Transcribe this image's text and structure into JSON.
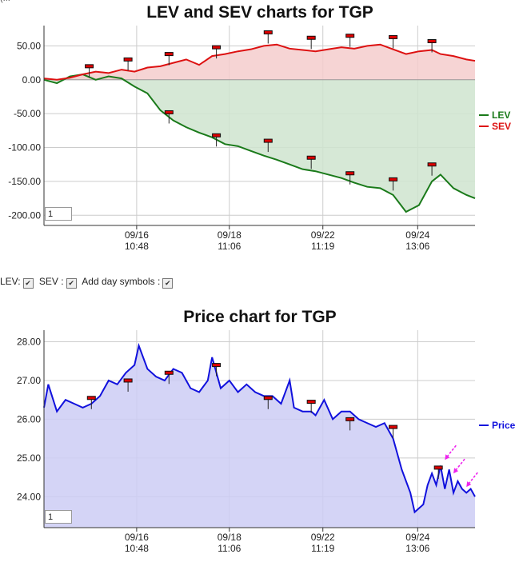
{
  "page": {
    "top_fragment": "(..."
  },
  "chart_data": [
    {
      "type": "area",
      "title": "LEV and SEV charts for TGP",
      "yticks": [
        50,
        0,
        -50,
        -100,
        -150,
        -200
      ],
      "ylim": [
        -215,
        80
      ],
      "xticks": [
        {
          "x": 0.215,
          "date": "09/16",
          "time": "10:48"
        },
        {
          "x": 0.43,
          "date": "09/18",
          "time": "11:06"
        },
        {
          "x": 0.647,
          "date": "09/22",
          "time": "11:19"
        },
        {
          "x": 0.867,
          "date": "09/24",
          "time": "13:06"
        }
      ],
      "frame_value": "1",
      "series": [
        {
          "name": "LEV",
          "color": "#1a7a1a",
          "fill": "#cfe4cf",
          "x": [
            0,
            0.03,
            0.06,
            0.09,
            0.12,
            0.15,
            0.18,
            0.21,
            0.24,
            0.27,
            0.3,
            0.33,
            0.36,
            0.39,
            0.42,
            0.45,
            0.48,
            0.51,
            0.54,
            0.57,
            0.6,
            0.63,
            0.66,
            0.69,
            0.72,
            0.75,
            0.78,
            0.81,
            0.84,
            0.87,
            0.9,
            0.92,
            0.95,
            0.98,
            1.0
          ],
          "y": [
            0,
            -5,
            5,
            8,
            0,
            5,
            2,
            -10,
            -20,
            -45,
            -60,
            -70,
            -78,
            -85,
            -95,
            -98,
            -105,
            -112,
            -118,
            -125,
            -132,
            -135,
            -140,
            -145,
            -152,
            -158,
            -160,
            -170,
            -195,
            -185,
            -150,
            -140,
            -160,
            -170,
            -175
          ]
        },
        {
          "name": "SEV",
          "color": "#dd1111",
          "fill": "#f4cccc",
          "x": [
            0,
            0.03,
            0.06,
            0.09,
            0.12,
            0.15,
            0.18,
            0.21,
            0.24,
            0.27,
            0.3,
            0.33,
            0.36,
            0.39,
            0.42,
            0.45,
            0.48,
            0.51,
            0.54,
            0.57,
            0.6,
            0.63,
            0.66,
            0.69,
            0.72,
            0.75,
            0.78,
            0.81,
            0.84,
            0.87,
            0.9,
            0.92,
            0.95,
            0.98,
            1.0
          ],
          "y": [
            2,
            0,
            3,
            8,
            12,
            10,
            15,
            12,
            18,
            20,
            25,
            30,
            22,
            35,
            38,
            42,
            45,
            50,
            52,
            46,
            44,
            42,
            45,
            48,
            46,
            50,
            52,
            45,
            38,
            42,
            44,
            38,
            35,
            30,
            28
          ]
        }
      ],
      "markers": [
        {
          "x": 0.105,
          "y": 20
        },
        {
          "x": 0.195,
          "y": 30
        },
        {
          "x": 0.29,
          "y": 38
        },
        {
          "x": 0.4,
          "y": 48
        },
        {
          "x": 0.52,
          "y": 70
        },
        {
          "x": 0.62,
          "y": 62
        },
        {
          "x": 0.71,
          "y": 65
        },
        {
          "x": 0.81,
          "y": 63
        },
        {
          "x": 0.9,
          "y": 57
        },
        {
          "x": 0.29,
          "y": -48
        },
        {
          "x": 0.4,
          "y": -82
        },
        {
          "x": 0.52,
          "y": -90
        },
        {
          "x": 0.62,
          "y": -115
        },
        {
          "x": 0.71,
          "y": -138
        },
        {
          "x": 0.81,
          "y": -147
        },
        {
          "x": 0.9,
          "y": -125
        }
      ]
    },
    {
      "type": "area",
      "title": "Price chart for TGP",
      "yticks": [
        28.0,
        27.0,
        26.0,
        25.0,
        24.0
      ],
      "ylim": [
        23.2,
        28.3
      ],
      "xticks": [
        {
          "x": 0.215,
          "date": "09/16",
          "time": "10:48"
        },
        {
          "x": 0.43,
          "date": "09/18",
          "time": "11:06"
        },
        {
          "x": 0.647,
          "date": "09/22",
          "time": "11:19"
        },
        {
          "x": 0.867,
          "date": "09/24",
          "time": "13:06"
        }
      ],
      "frame_value": "1",
      "series": [
        {
          "name": "Price",
          "color": "#1111dd",
          "fill": "#ccccf4",
          "x": [
            0,
            0.01,
            0.03,
            0.05,
            0.07,
            0.09,
            0.11,
            0.13,
            0.15,
            0.17,
            0.19,
            0.21,
            0.22,
            0.24,
            0.26,
            0.28,
            0.3,
            0.32,
            0.34,
            0.36,
            0.38,
            0.39,
            0.41,
            0.43,
            0.45,
            0.47,
            0.49,
            0.51,
            0.53,
            0.55,
            0.57,
            0.58,
            0.6,
            0.62,
            0.63,
            0.65,
            0.67,
            0.69,
            0.71,
            0.73,
            0.75,
            0.77,
            0.79,
            0.81,
            0.83,
            0.85,
            0.86,
            0.88,
            0.89,
            0.9,
            0.91,
            0.92,
            0.93,
            0.94,
            0.95,
            0.96,
            0.97,
            0.98,
            0.99,
            1.0
          ],
          "y": [
            26.3,
            26.9,
            26.2,
            26.5,
            26.4,
            26.3,
            26.4,
            26.6,
            27.0,
            26.9,
            27.2,
            27.4,
            27.9,
            27.3,
            27.1,
            27.0,
            27.3,
            27.2,
            26.8,
            26.7,
            27.0,
            27.6,
            26.8,
            27.0,
            26.7,
            26.9,
            26.7,
            26.6,
            26.6,
            26.4,
            27.0,
            26.3,
            26.2,
            26.2,
            26.1,
            26.5,
            26.0,
            26.2,
            26.2,
            26.0,
            25.9,
            25.8,
            25.9,
            25.5,
            24.7,
            24.1,
            23.6,
            23.8,
            24.3,
            24.6,
            24.3,
            24.8,
            24.2,
            24.7,
            24.1,
            24.4,
            24.2,
            24.1,
            24.2,
            24.0
          ]
        }
      ],
      "markers": [
        {
          "x": 0.11,
          "y": 26.55
        },
        {
          "x": 0.195,
          "y": 27.0
        },
        {
          "x": 0.29,
          "y": 27.2
        },
        {
          "x": 0.4,
          "y": 27.4
        },
        {
          "x": 0.52,
          "y": 26.55
        },
        {
          "x": 0.62,
          "y": 26.45
        },
        {
          "x": 0.71,
          "y": 26.0
        },
        {
          "x": 0.81,
          "y": 25.8
        },
        {
          "x": 0.915,
          "y": 24.75
        }
      ],
      "arrows": [
        {
          "x": 0.93,
          "y": 24.95
        },
        {
          "x": 0.95,
          "y": 24.6
        },
        {
          "x": 0.98,
          "y": 24.25
        }
      ]
    }
  ],
  "controls": {
    "items": [
      {
        "label": "LEV:",
        "checked": true
      },
      {
        "label": "SEV :",
        "checked": true
      },
      {
        "label": "Add day symbols :",
        "checked": true
      }
    ]
  },
  "colors": {
    "grid": "#cccccc",
    "axis": "#333333",
    "marker_fill": "#dd0000",
    "arrow": "#ee22ee"
  }
}
